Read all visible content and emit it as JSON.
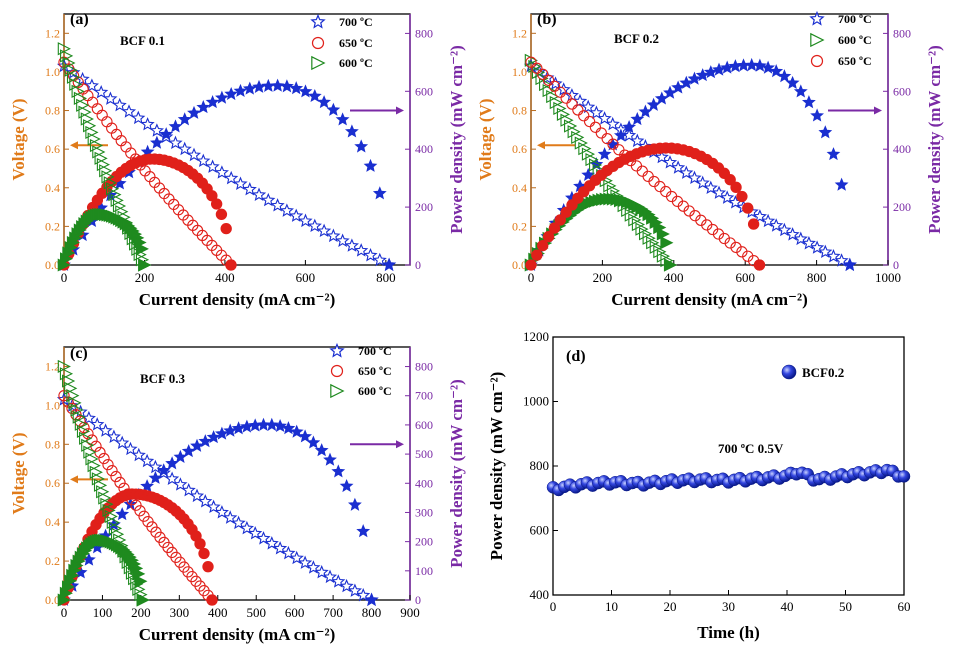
{
  "colors": {
    "voltage_axis": "#e07b1a",
    "power_axis": "#7a2aa5",
    "c700": "#1a2fd0",
    "c650": "#e0201a",
    "c600": "#1f8a1f",
    "ball": "#2a3ad8",
    "axis": "#000000"
  },
  "chart_data": [
    {
      "type": "line",
      "panel": "(a)",
      "sample": "BCF 0.1",
      "xlabel": "Current density (mA cm⁻²)",
      "ylabel_left": "Voltage (V)",
      "ylabel_right": "Power density (mW cm⁻²)",
      "xlim": [
        0,
        860
      ],
      "xticks": [
        0,
        200,
        400,
        600,
        800
      ],
      "ylim_left": [
        0,
        1.3
      ],
      "yticks_left": [
        0.0,
        0.2,
        0.4,
        0.6,
        0.8,
        1.0,
        1.2
      ],
      "ylim_right": [
        0,
        867
      ],
      "yticks_right": [
        0,
        200,
        400,
        600,
        800
      ],
      "legend": [
        "700 ºC",
        "650 ºC",
        "600 ºC"
      ],
      "legend_position": "top-right",
      "series": [
        {
          "name": "700 ºC",
          "color_key": "c700",
          "ocv": 1.03,
          "imax": 808,
          "peak_power": 619,
          "peak_i": 530
        },
        {
          "name": "650 ºC",
          "color_key": "c650",
          "ocv": 1.05,
          "imax": 415,
          "peak_power": 366,
          "peak_i": 220
        },
        {
          "name": "600 ºC",
          "color_key": "c600",
          "ocv": 1.12,
          "imax": 200,
          "peak_power": 175,
          "peak_i": 90
        }
      ]
    },
    {
      "type": "line",
      "panel": "(b)",
      "sample": "BCF 0.2",
      "xlabel": "Current density (mA cm⁻²)",
      "ylabel_left": "Voltage (V)",
      "ylabel_right": "Power density (mW cm⁻²)",
      "xlim": [
        0,
        1000
      ],
      "xticks": [
        0,
        200,
        400,
        600,
        800,
        1000
      ],
      "ylim_left": [
        0,
        1.3
      ],
      "yticks_left": [
        0.0,
        0.2,
        0.4,
        0.6,
        0.8,
        1.0,
        1.2
      ],
      "ylim_right": [
        0,
        867
      ],
      "yticks_right": [
        0,
        200,
        400,
        600,
        800
      ],
      "legend": [
        "700 ºC",
        "600 ºC",
        "650 ºC"
      ],
      "legend_position": "top-right",
      "series": [
        {
          "name": "700 ºC",
          "color_key": "c700",
          "ocv": 1.03,
          "imax": 893,
          "peak_power": 690,
          "peak_i": 620
        },
        {
          "name": "600 ºC",
          "color_key": "c600",
          "ocv": 1.06,
          "imax": 390,
          "peak_power": 228,
          "peak_i": 220
        },
        {
          "name": "650 ºC",
          "color_key": "c650",
          "ocv": 1.05,
          "imax": 640,
          "peak_power": 404,
          "peak_i": 380
        }
      ]
    },
    {
      "type": "line",
      "panel": "(c)",
      "sample": "BCF 0.3",
      "xlabel": "Current density (mA cm⁻²)",
      "ylabel_left": "Voltage (V)",
      "ylabel_right": "Power density (mW cm⁻²)",
      "xlim": [
        0,
        900
      ],
      "xticks": [
        0,
        100,
        200,
        300,
        400,
        500,
        600,
        700,
        800,
        900
      ],
      "ylim_left": [
        0,
        1.3
      ],
      "yticks_left": [
        0.0,
        0.2,
        0.4,
        0.6,
        0.8,
        1.0,
        1.2
      ],
      "ylim_right": [
        0,
        867
      ],
      "yticks_right": [
        0,
        100,
        200,
        300,
        400,
        500,
        600,
        700,
        800
      ],
      "legend": [
        "700 ºC",
        "650 ºC",
        "600 ºC"
      ],
      "legend_position": "top-right",
      "series": [
        {
          "name": "700 ºC",
          "color_key": "c700",
          "ocv": 1.03,
          "imax": 800,
          "peak_power": 600,
          "peak_i": 530
        },
        {
          "name": "650 ºC",
          "color_key": "c650",
          "ocv": 1.05,
          "imax": 385,
          "peak_power": 363,
          "peak_i": 180
        },
        {
          "name": "600 ºC",
          "color_key": "c600",
          "ocv": 1.2,
          "imax": 205,
          "peak_power": 205,
          "peak_i": 95
        }
      ]
    },
    {
      "type": "scatter",
      "panel": "(d)",
      "xlabel": "Time (h)",
      "ylabel": "Power density (mW cm⁻²)",
      "xlim": [
        0,
        60
      ],
      "xticks": [
        0,
        10,
        20,
        30,
        40,
        50,
        60
      ],
      "ylim": [
        400,
        1200
      ],
      "yticks": [
        400,
        600,
        800,
        1000,
        1200
      ],
      "annotation": "700 ºC    0.5V",
      "legend": [
        "BCF0.2"
      ],
      "legend_position": "top-right",
      "series": [
        {
          "name": "BCF0.2",
          "x": [
            0,
            5,
            10,
            15,
            20,
            25,
            30,
            35,
            40,
            42,
            45,
            50,
            55,
            57,
            60
          ],
          "y": [
            728,
            742,
            748,
            744,
            752,
            756,
            754,
            760,
            768,
            782,
            756,
            770,
            780,
            786,
            766
          ]
        }
      ]
    }
  ]
}
